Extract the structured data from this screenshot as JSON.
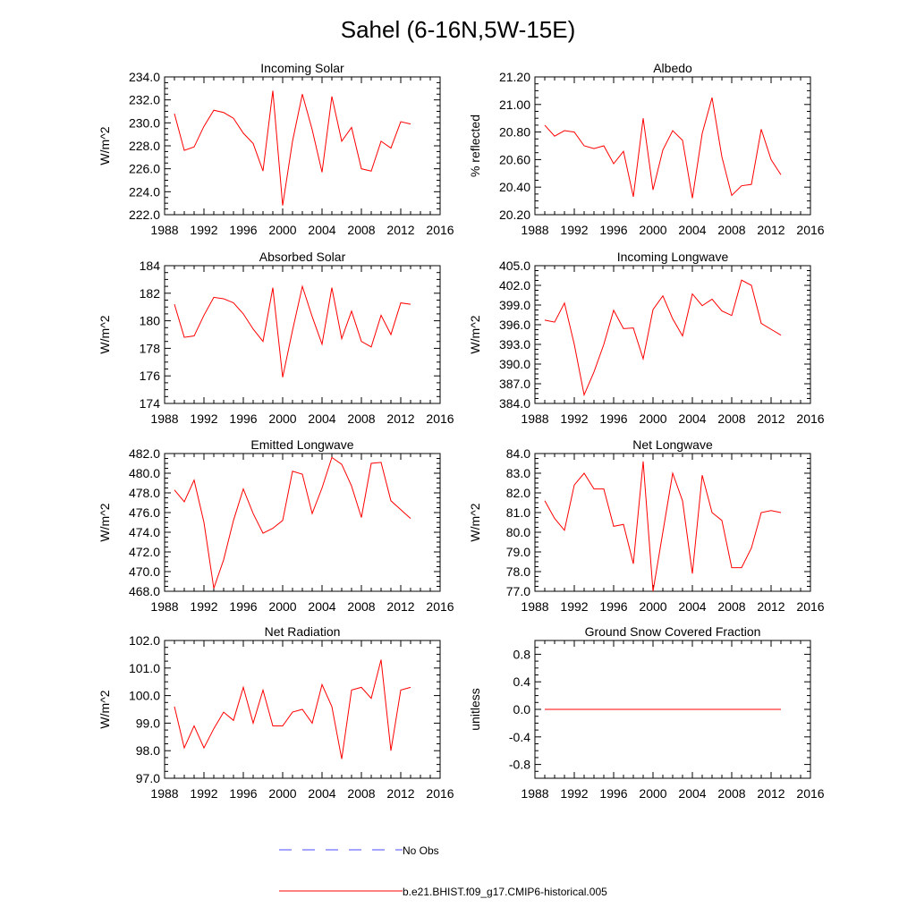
{
  "title": "Sahel (6-16N,5W-15E)",
  "colors": {
    "model": "#ff0000",
    "obs": "#4b4bff",
    "axis": "#000000"
  },
  "legend": {
    "obs_label": "No Obs",
    "model_label": "b.e21.BHIST.f09_g17.CMIP6-historical.005"
  },
  "chart_data": [
    {
      "type": "line",
      "title": "Incoming Solar",
      "ylabel": "W/m^2",
      "xlim": [
        1988,
        2016
      ],
      "xticks": [
        1988,
        1992,
        1996,
        2000,
        2004,
        2008,
        2012,
        2016
      ],
      "ylim": [
        222,
        234
      ],
      "yticks": [
        222,
        224,
        226,
        228,
        230,
        232,
        234
      ],
      "ytick_labels": [
        "222.0",
        "224.0",
        "226.0",
        "228.0",
        "230.0",
        "232.0",
        "234.0"
      ],
      "x": [
        1989,
        1990,
        1991,
        1992,
        1993,
        1994,
        1995,
        1996,
        1997,
        1998,
        1999,
        2000,
        2001,
        2002,
        2003,
        2004,
        2005,
        2006,
        2007,
        2008,
        2009,
        2010,
        2011,
        2012,
        2013
      ],
      "values": [
        230.8,
        227.6,
        227.9,
        229.7,
        231.1,
        230.9,
        230.4,
        229.1,
        228.2,
        225.8,
        232.8,
        222.8,
        228.4,
        232.5,
        229.4,
        225.7,
        232.3,
        228.4,
        229.6,
        226.0,
        225.8,
        228.4,
        227.8,
        230.1,
        229.9
      ]
    },
    {
      "type": "line",
      "title": "Albedo",
      "ylabel": "% reflected",
      "xlim": [
        1988,
        2016
      ],
      "xticks": [
        1988,
        1992,
        1996,
        2000,
        2004,
        2008,
        2012,
        2016
      ],
      "ylim": [
        20.2,
        21.2
      ],
      "yticks": [
        20.2,
        20.4,
        20.6,
        20.8,
        21.0,
        21.2
      ],
      "ytick_labels": [
        "20.20",
        "20.40",
        "20.60",
        "20.80",
        "21.00",
        "21.20"
      ],
      "x": [
        1989,
        1990,
        1991,
        1992,
        1993,
        1994,
        1995,
        1996,
        1997,
        1998,
        1999,
        2000,
        2001,
        2002,
        2003,
        2004,
        2005,
        2006,
        2007,
        2008,
        2009,
        2010,
        2011,
        2012,
        2013
      ],
      "values": [
        20.85,
        20.77,
        20.81,
        20.8,
        20.7,
        20.68,
        20.7,
        20.57,
        20.66,
        20.33,
        20.9,
        20.38,
        20.67,
        20.81,
        20.74,
        20.32,
        20.79,
        21.05,
        20.62,
        20.34,
        20.41,
        20.42,
        20.82,
        20.6,
        20.49
      ]
    },
    {
      "type": "line",
      "title": "Absorbed Solar",
      "ylabel": "W/m^2",
      "xlim": [
        1988,
        2016
      ],
      "xticks": [
        1988,
        1992,
        1996,
        2000,
        2004,
        2008,
        2012,
        2016
      ],
      "ylim": [
        174,
        184
      ],
      "yticks": [
        174,
        176,
        178,
        180,
        182,
        184
      ],
      "ytick_labels": [
        "174",
        "176",
        "178",
        "180",
        "182",
        "184"
      ],
      "x": [
        1989,
        1990,
        1991,
        1992,
        1993,
        1994,
        1995,
        1996,
        1997,
        1998,
        1999,
        2000,
        2001,
        2002,
        2003,
        2004,
        2005,
        2006,
        2007,
        2008,
        2009,
        2010,
        2011,
        2012,
        2013
      ],
      "values": [
        181.2,
        178.8,
        178.9,
        180.4,
        181.7,
        181.6,
        181.3,
        180.5,
        179.4,
        178.5,
        182.4,
        175.9,
        179.3,
        182.5,
        180.3,
        178.3,
        182.4,
        178.7,
        180.7,
        178.5,
        178.1,
        180.4,
        179.0,
        181.3,
        181.2
      ]
    },
    {
      "type": "line",
      "title": "Incoming Longwave",
      "ylabel": "W/m^2",
      "xlim": [
        1988,
        2016
      ],
      "xticks": [
        1988,
        1992,
        1996,
        2000,
        2004,
        2008,
        2012,
        2016
      ],
      "ylim": [
        384,
        405
      ],
      "yticks": [
        384,
        387,
        390,
        393,
        396,
        399,
        402,
        405
      ],
      "ytick_labels": [
        "384.0",
        "387.0",
        "390.0",
        "393.0",
        "396.0",
        "399.0",
        "402.0",
        "405.0"
      ],
      "x": [
        1989,
        1990,
        1991,
        1992,
        1993,
        1994,
        1995,
        1996,
        1997,
        1998,
        1999,
        2000,
        2001,
        2002,
        2003,
        2004,
        2005,
        2006,
        2007,
        2008,
        2009,
        2010,
        2011,
        2012,
        2013
      ],
      "values": [
        396.7,
        396.4,
        399.3,
        393.0,
        385.3,
        388.8,
        393.0,
        398.2,
        395.4,
        395.5,
        390.8,
        398.3,
        400.4,
        396.9,
        394.3,
        400.7,
        398.9,
        399.9,
        398.1,
        397.4,
        402.8,
        402.0,
        396.2,
        395.3,
        394.4
      ]
    },
    {
      "type": "line",
      "title": "Emitted Longwave",
      "ylabel": "W/m^2",
      "xlim": [
        1988,
        2016
      ],
      "xticks": [
        1988,
        1992,
        1996,
        2000,
        2004,
        2008,
        2012,
        2016
      ],
      "ylim": [
        468,
        482
      ],
      "yticks": [
        468,
        470,
        472,
        474,
        476,
        478,
        480,
        482
      ],
      "ytick_labels": [
        "468.0",
        "470.0",
        "472.0",
        "474.0",
        "476.0",
        "478.0",
        "480.0",
        "482.0"
      ],
      "x": [
        1989,
        1990,
        1991,
        1992,
        1993,
        1994,
        1995,
        1996,
        1997,
        1998,
        1999,
        2000,
        2001,
        2002,
        2003,
        2004,
        2005,
        2006,
        2007,
        2008,
        2009,
        2010,
        2011,
        2012,
        2013
      ],
      "values": [
        478.3,
        477.1,
        479.3,
        475.0,
        468.3,
        471.2,
        475.2,
        478.4,
        475.9,
        473.9,
        474.4,
        475.2,
        480.2,
        479.9,
        475.9,
        478.5,
        481.6,
        480.9,
        478.7,
        475.5,
        481.0,
        481.1,
        477.2,
        476.3,
        475.4
      ]
    },
    {
      "type": "line",
      "title": "Net Longwave",
      "ylabel": "W/m^2",
      "xlim": [
        1988,
        2016
      ],
      "xticks": [
        1988,
        1992,
        1996,
        2000,
        2004,
        2008,
        2012,
        2016
      ],
      "ylim": [
        77,
        84
      ],
      "yticks": [
        77,
        78,
        79,
        80,
        81,
        82,
        83,
        84
      ],
      "ytick_labels": [
        "77.0",
        "78.0",
        "79.0",
        "80.0",
        "81.0",
        "82.0",
        "83.0",
        "84.0"
      ],
      "x": [
        1989,
        1990,
        1991,
        1992,
        1993,
        1994,
        1995,
        1996,
        1997,
        1998,
        1999,
        2000,
        2001,
        2002,
        2003,
        2004,
        2005,
        2006,
        2007,
        2008,
        2009,
        2010,
        2011,
        2012,
        2013
      ],
      "values": [
        81.6,
        80.7,
        80.1,
        82.4,
        83.0,
        82.2,
        82.2,
        80.3,
        80.4,
        78.4,
        83.6,
        77.0,
        80.0,
        83.0,
        81.6,
        77.9,
        82.9,
        81.0,
        80.6,
        78.2,
        78.2,
        79.2,
        81.0,
        81.1,
        81.0
      ]
    },
    {
      "type": "line",
      "title": "Net Radiation",
      "ylabel": "W/m^2",
      "xlim": [
        1988,
        2016
      ],
      "xticks": [
        1988,
        1992,
        1996,
        2000,
        2004,
        2008,
        2012,
        2016
      ],
      "ylim": [
        97,
        102
      ],
      "yticks": [
        97,
        98,
        99,
        100,
        101,
        102
      ],
      "ytick_labels": [
        "97.0",
        "98.0",
        "99.0",
        "100.0",
        "101.0",
        "102.0"
      ],
      "x": [
        1989,
        1990,
        1991,
        1992,
        1993,
        1994,
        1995,
        1996,
        1997,
        1998,
        1999,
        2000,
        2001,
        2002,
        2003,
        2004,
        2005,
        2006,
        2007,
        2008,
        2009,
        2010,
        2011,
        2012,
        2013
      ],
      "values": [
        99.6,
        98.1,
        98.9,
        98.1,
        98.8,
        99.4,
        99.1,
        100.3,
        99.0,
        100.2,
        98.9,
        98.9,
        99.4,
        99.5,
        99.0,
        100.4,
        99.6,
        97.7,
        100.2,
        100.3,
        99.9,
        101.3,
        98.0,
        100.2,
        100.3
      ]
    },
    {
      "type": "line",
      "title": "Ground Snow Covered Fraction",
      "ylabel": "unitless",
      "xlim": [
        1988,
        2016
      ],
      "xticks": [
        1988,
        1992,
        1996,
        2000,
        2004,
        2008,
        2012,
        2016
      ],
      "ylim": [
        -1.0,
        1.0
      ],
      "yticks": [
        -0.8,
        -0.4,
        0.0,
        0.4,
        0.8
      ],
      "ytick_labels": [
        "-0.8",
        "-0.4",
        "0.0",
        "0.4",
        "0.8"
      ],
      "x": [
        1989,
        1990,
        1991,
        1992,
        1993,
        1994,
        1995,
        1996,
        1997,
        1998,
        1999,
        2000,
        2001,
        2002,
        2003,
        2004,
        2005,
        2006,
        2007,
        2008,
        2009,
        2010,
        2011,
        2012,
        2013
      ],
      "values": [
        0,
        0,
        0,
        0,
        0,
        0,
        0,
        0,
        0,
        0,
        0,
        0,
        0,
        0,
        0,
        0,
        0,
        0,
        0,
        0,
        0,
        0,
        0,
        0,
        0
      ]
    }
  ]
}
